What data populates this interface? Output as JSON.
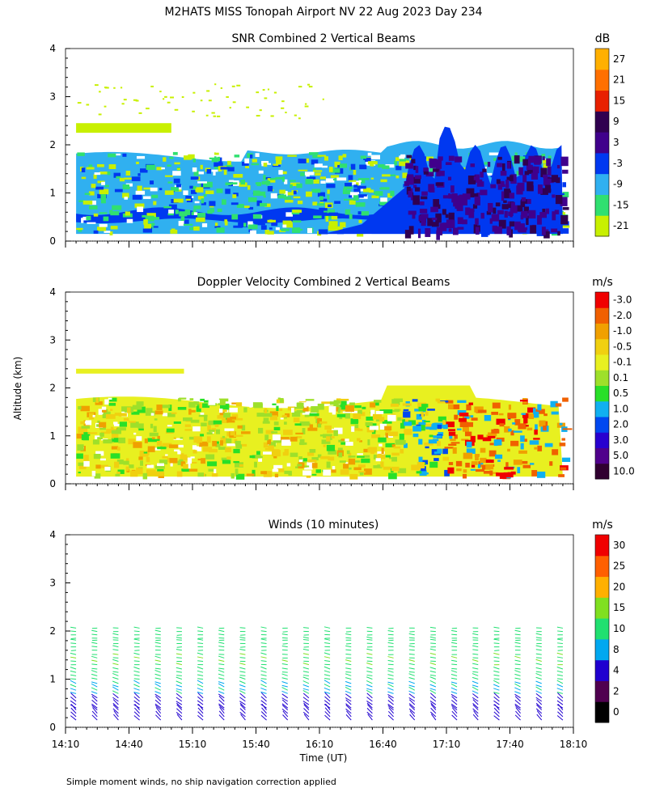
{
  "figure": {
    "title": "M2HATS MISS Tonopah Airport NV  22 Aug 2023 Day 234",
    "ylabel": "Altitude (km)",
    "xlabel": "Time (UT)",
    "footnote": "Simple moment winds, no ship navigation correction applied"
  },
  "chart_data": [
    {
      "type": "heatmap",
      "title": "SNR Combined 2 Vertical Beams",
      "units": "dB",
      "ylabel": "Altitude (km)",
      "ylim": [
        0,
        4
      ],
      "yticks": [
        "0",
        "1",
        "2",
        "3",
        "4"
      ],
      "xlim_hours": [
        14.1667,
        18.1667
      ],
      "colorbar": {
        "labels": [
          "-21",
          "-15",
          "-9",
          "-3",
          "3",
          "9",
          "15",
          "21",
          "27"
        ],
        "colors": [
          "#c8f000",
          "#30e070",
          "#30b0f0",
          "#0038f0",
          "#40008c",
          "#300050",
          "#e82000",
          "#ff7000",
          "#ffb000"
        ]
      },
      "features": [
        {
          "desc": "main echo layer",
          "t_start": "14:10",
          "t_end": "18:05",
          "alt_top_km": 1.9,
          "alt_bottom_km": 0.15,
          "typical_dB": -9
        },
        {
          "desc": "strong low layer",
          "t_start": "14:10",
          "t_end": "16:40",
          "alt_km": 0.55,
          "typical_dB": -3
        },
        {
          "desc": "convective plumes",
          "t_start": "16:50",
          "t_end": "18:05",
          "alt_top_km": 2.5,
          "typical_dB": 6
        },
        {
          "desc": "upper residual layer",
          "t_start": "14:10",
          "t_end": "15:00",
          "alt_km": 2.35,
          "typical_dB": -18
        }
      ]
    },
    {
      "type": "heatmap",
      "title": "Doppler Velocity Combined 2 Vertical Beams",
      "units": "m/s",
      "ylabel": "Altitude (km)",
      "ylim": [
        0,
        4
      ],
      "yticks": [
        "0",
        "1",
        "2",
        "3",
        "4"
      ],
      "xlim_hours": [
        14.1667,
        18.1667
      ],
      "colorbar": {
        "labels": [
          "10.0",
          "5.0",
          "3.0",
          "2.0",
          "1.0",
          "0.5",
          "0.1",
          "-0.1",
          "-0.5",
          "-1.0",
          "-2.0",
          "-3.0"
        ],
        "colors": [
          "#300030",
          "#50008c",
          "#2800d0",
          "#0048f0",
          "#10b0f0",
          "#28e028",
          "#9ee02a",
          "#e8f020",
          "#f0d010",
          "#f0a000",
          "#f06000",
          "#f00000"
        ]
      },
      "features": [
        {
          "desc": "near-zero velocities",
          "t_start": "14:10",
          "t_end": "16:50",
          "alt_top_km": 1.8,
          "typical_ms": -0.2
        },
        {
          "desc": "updrafts",
          "t_start": "16:50",
          "t_end": "17:30",
          "alt_top_km": 2.3,
          "typical_ms": 1.0
        },
        {
          "desc": "downdrafts",
          "t_start": "17:10",
          "t_end": "18:05",
          "alt_top_km": 1.2,
          "typical_ms": -2.0
        }
      ]
    },
    {
      "type": "scatter",
      "title": "Winds (10 minutes)",
      "units": "m/s",
      "ylabel": "Altitude (km)",
      "xlabel": "Time (UT)",
      "ylim": [
        0,
        4
      ],
      "yticks": [
        "0",
        "1",
        "2",
        "3",
        "4"
      ],
      "xticks": [
        "14:10",
        "14:40",
        "15:10",
        "15:40",
        "16:10",
        "16:40",
        "17:10",
        "17:40",
        "18:10"
      ],
      "xlim_hours": [
        14.1667,
        18.1667
      ],
      "colorbar": {
        "labels": [
          "0",
          "2",
          "4",
          "8",
          "10",
          "15",
          "20",
          "25",
          "30"
        ],
        "colors": [
          "#000000",
          "#500050",
          "#2000d0",
          "#00a8f0",
          "#20e070",
          "#80e020",
          "#ffb000",
          "#ff6000",
          "#f00000"
        ]
      },
      "profile_times": [
        "14:15",
        "14:25",
        "14:35",
        "14:45",
        "14:55",
        "15:05",
        "15:15",
        "15:25",
        "15:35",
        "15:45",
        "15:55",
        "16:05",
        "16:15",
        "16:25",
        "16:35",
        "16:45",
        "16:55",
        "17:05",
        "17:15",
        "17:25",
        "17:35",
        "17:45",
        "17:55",
        "18:05"
      ],
      "barbs_per_profile": [
        {
          "alt_km": 0.15,
          "speed_ms": 5,
          "dir_deg": 300
        },
        {
          "alt_km": 0.4,
          "speed_ms": 6,
          "dir_deg": 290
        },
        {
          "alt_km": 0.7,
          "speed_ms": 9,
          "dir_deg": 270
        },
        {
          "alt_km": 1.0,
          "speed_ms": 13,
          "dir_deg": 260
        },
        {
          "alt_km": 1.3,
          "speed_ms": 14,
          "dir_deg": 255
        },
        {
          "alt_km": 1.6,
          "speed_ms": 13,
          "dir_deg": 250
        },
        {
          "alt_km": 1.85,
          "speed_ms": 12,
          "dir_deg": 250
        }
      ]
    }
  ]
}
